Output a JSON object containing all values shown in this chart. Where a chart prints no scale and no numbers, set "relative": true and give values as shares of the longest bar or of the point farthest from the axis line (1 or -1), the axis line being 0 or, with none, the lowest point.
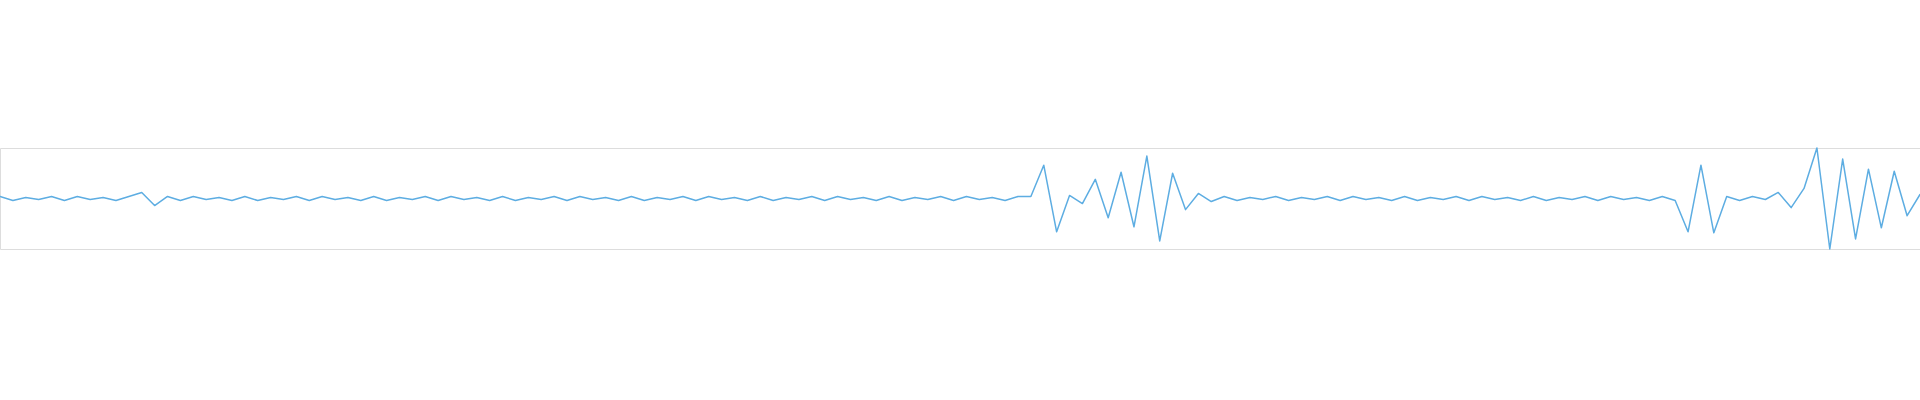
{
  "chart_data": {
    "type": "line",
    "relative": true,
    "color": "#5dade2",
    "categories": [
      null,
      null,
      null,
      null,
      null,
      null,
      null,
      null,
      null,
      null,
      null,
      null,
      null,
      null,
      null,
      null,
      null,
      null,
      null,
      null,
      null,
      null,
      null,
      null,
      null,
      null,
      null,
      null,
      null,
      null,
      null,
      null,
      null,
      null,
      null,
      null,
      null,
      null,
      null,
      null,
      null,
      null,
      null,
      null,
      null,
      null,
      null,
      null,
      null,
      null,
      null,
      null,
      null,
      null,
      null,
      null,
      null,
      null,
      null,
      null,
      null,
      null,
      null,
      null,
      null,
      null,
      null,
      null,
      null,
      null,
      null,
      null,
      null,
      null,
      null,
      null,
      null,
      null,
      null,
      null,
      null,
      null,
      null,
      null,
      null,
      null,
      null,
      null,
      null,
      null,
      null,
      null,
      null,
      null,
      null,
      null,
      null,
      null,
      null,
      null,
      null,
      null,
      null,
      null,
      null,
      null,
      null,
      null,
      null,
      null,
      null,
      null,
      null,
      null,
      null,
      null,
      null,
      null,
      null,
      null,
      null,
      null,
      null,
      null,
      null,
      null,
      null,
      null,
      null,
      null,
      null,
      null,
      null,
      null,
      null,
      null,
      null,
      null,
      null,
      null,
      null,
      null,
      null,
      null,
      null,
      null,
      null,
      null,
      null,
      null
    ],
    "values": [
      0.52,
      0.48,
      0.51,
      0.49,
      0.52,
      0.48,
      0.52,
      0.49,
      0.51,
      0.48,
      0.52,
      0.56,
      0.43,
      0.52,
      0.48,
      0.52,
      0.49,
      0.51,
      0.48,
      0.52,
      0.48,
      0.51,
      0.49,
      0.52,
      0.48,
      0.52,
      0.49,
      0.51,
      0.48,
      0.52,
      0.48,
      0.51,
      0.49,
      0.52,
      0.48,
      0.52,
      0.49,
      0.51,
      0.48,
      0.52,
      0.48,
      0.51,
      0.49,
      0.52,
      0.48,
      0.52,
      0.49,
      0.51,
      0.48,
      0.52,
      0.48,
      0.51,
      0.49,
      0.52,
      0.48,
      0.52,
      0.49,
      0.51,
      0.48,
      0.52,
      0.48,
      0.51,
      0.49,
      0.52,
      0.48,
      0.52,
      0.49,
      0.51,
      0.48,
      0.52,
      0.48,
      0.51,
      0.49,
      0.52,
      0.48,
      0.52,
      0.49,
      0.51,
      0.48,
      0.52,
      0.52,
      0.83,
      0.17,
      0.53,
      0.45,
      0.69,
      0.31,
      0.76,
      0.22,
      0.92,
      0.08,
      0.75,
      0.39,
      0.55,
      0.47,
      0.52,
      0.48,
      0.51,
      0.49,
      0.52,
      0.48,
      0.51,
      0.49,
      0.52,
      0.48,
      0.52,
      0.49,
      0.51,
      0.48,
      0.52,
      0.48,
      0.51,
      0.49,
      0.52,
      0.48,
      0.52,
      0.49,
      0.51,
      0.48,
      0.52,
      0.48,
      0.51,
      0.49,
      0.52,
      0.48,
      0.52,
      0.49,
      0.51,
      0.48,
      0.52,
      0.48,
      0.17,
      0.83,
      0.16,
      0.52,
      0.48,
      0.52,
      0.49,
      0.56,
      0.41,
      0.6,
      1.0,
      0.0,
      0.89,
      0.1,
      0.79,
      0.21,
      0.77,
      0.33,
      0.54
    ]
  }
}
